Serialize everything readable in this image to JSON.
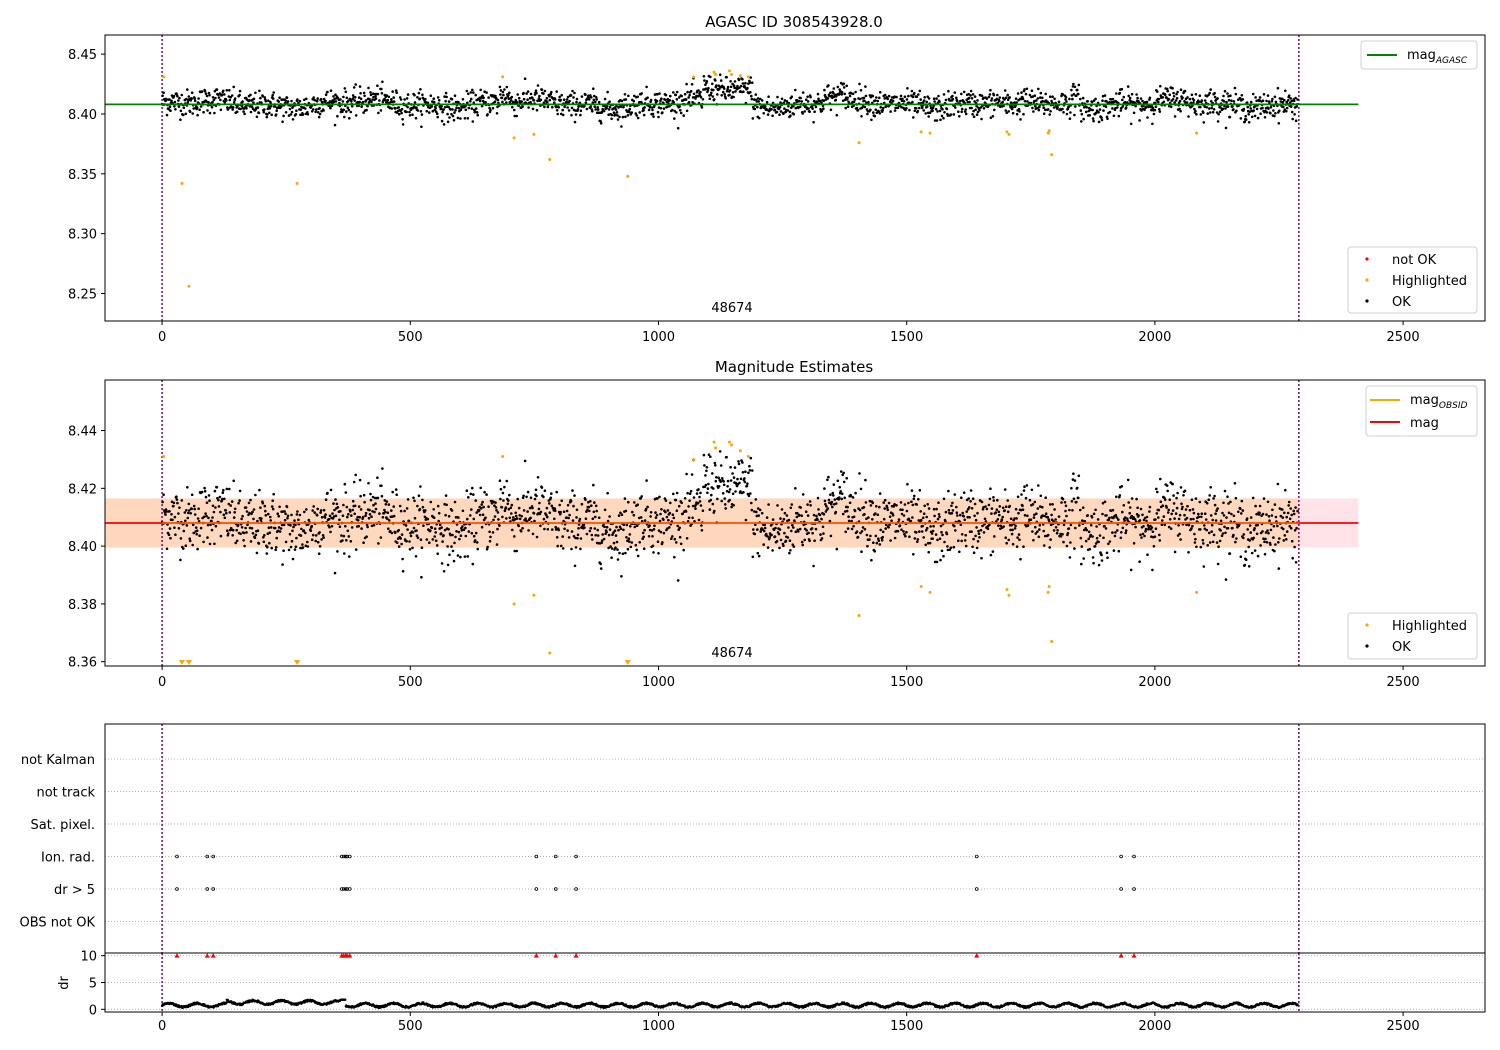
{
  "colors": {
    "ok": "#000000",
    "highlighted": "#ffa500",
    "not_ok": "#ff0000",
    "mag_agasc": "#008000",
    "mag_obsid": "#ffa500",
    "mag": "#ff0000",
    "band_fill": "#ffc0cb",
    "obs_boundary": "#800080",
    "grid": "#b0b0b0"
  },
  "chart_data": [
    {
      "type": "scatter",
      "title": "AGASC ID 308543928.0",
      "xlim": [
        -115,
        2665
      ],
      "ylim": [
        8.227,
        8.466
      ],
      "xticks": [
        0,
        500,
        1000,
        1500,
        2000,
        2500
      ],
      "yticks": [
        8.25,
        8.3,
        8.35,
        8.4,
        8.45
      ],
      "ytick_labels": [
        "8.25",
        "8.30",
        "8.35",
        "8.40",
        "8.45"
      ],
      "obs_boundaries": [
        0,
        2290
      ],
      "obsid_label": {
        "text": "48674",
        "x": 1145,
        "y": 8.231
      },
      "mag_agasc": 8.408,
      "mag_agasc_range": [
        -115,
        2410
      ],
      "series": [
        {
          "name": "not OK",
          "role": "not_ok",
          "points": []
        },
        {
          "name": "Highlighted",
          "role": "highlighted",
          "points": [
            [
              3,
              8.431
            ],
            [
              40,
              8.342
            ],
            [
              54,
              8.256
            ],
            [
              272,
              8.342
            ],
            [
              686,
              8.431
            ],
            [
              709,
              8.38
            ],
            [
              749,
              8.383
            ],
            [
              781,
              8.362
            ],
            [
              938,
              8.348
            ],
            [
              1071,
              8.431
            ],
            [
              1112,
              8.435
            ],
            [
              1115,
              8.433
            ],
            [
              1143,
              8.436
            ],
            [
              1147,
              8.433
            ],
            [
              1165,
              8.432
            ],
            [
              1181,
              8.431
            ],
            [
              1404,
              8.376
            ],
            [
              1529,
              8.385
            ],
            [
              1547,
              8.384
            ],
            [
              1702,
              8.385
            ],
            [
              1706,
              8.383
            ],
            [
              1785,
              8.384
            ],
            [
              1787,
              8.386
            ],
            [
              1792,
              8.366
            ],
            [
              2084,
              8.384
            ]
          ]
        },
        {
          "name": "OK",
          "role": "ok",
          "source": "light_curve_pattern"
        }
      ],
      "legend": {
        "mag_label": "mag",
        "mag_subscript": "AGASC",
        "not_ok_label": "not OK",
        "highlighted_label": "Highlighted",
        "ok_label": "OK"
      }
    },
    {
      "type": "scatter",
      "title": "Magnitude Estimates",
      "xlim": [
        -115,
        2665
      ],
      "ylim": [
        8.3585,
        8.4575
      ],
      "xticks": [
        0,
        500,
        1000,
        1500,
        2000,
        2500
      ],
      "yticks": [
        8.36,
        8.38,
        8.4,
        8.42,
        8.44
      ],
      "ytick_labels": [
        "8.36",
        "8.38",
        "8.40",
        "8.42",
        "8.44"
      ],
      "obs_boundaries": [
        0,
        2290
      ],
      "obsid_label": {
        "text": "48674",
        "x": 1145,
        "y": 8.3615
      },
      "mag": 8.408,
      "mag_band": [
        8.3995,
        8.4165
      ],
      "mag_obsid": 8.408,
      "band_range": [
        -115,
        2410
      ],
      "series": [
        {
          "name": "Highlighted",
          "role": "highlighted",
          "points": [
            [
              3,
              8.431
            ],
            [
              686,
              8.431
            ],
            [
              709,
              8.38
            ],
            [
              749,
              8.383
            ],
            [
              781,
              8.363
            ],
            [
              1071,
              8.43
            ],
            [
              1112,
              8.436
            ],
            [
              1115,
              8.434
            ],
            [
              1143,
              8.436
            ],
            [
              1147,
              8.435
            ],
            [
              1165,
              8.433
            ],
            [
              1181,
              8.431
            ],
            [
              1404,
              8.376
            ],
            [
              1529,
              8.386
            ],
            [
              1547,
              8.384
            ],
            [
              1702,
              8.385
            ],
            [
              1706,
              8.383
            ],
            [
              1785,
              8.384
            ],
            [
              1787,
              8.386
            ],
            [
              1792,
              8.367
            ],
            [
              2084,
              8.384
            ]
          ]
        },
        {
          "name": "Highlighted (below axis)",
          "role": "highlighted_clipped",
          "points": [
            [
              40,
              8.36
            ],
            [
              54,
              8.36
            ],
            [
              272,
              8.36
            ],
            [
              938,
              8.36
            ]
          ]
        },
        {
          "name": "OK",
          "role": "ok",
          "source": "light_curve_pattern"
        }
      ],
      "legend": {
        "obsid_label": "mag",
        "obsid_subscript": "OBSID",
        "mag_label": "mag",
        "highlighted_label": "Highlighted",
        "ok_label": "OK"
      }
    },
    {
      "type": "scatter",
      "title": "",
      "xlim": [
        -115,
        2665
      ],
      "xticks": [
        0,
        500,
        1000,
        1500,
        2000,
        2500
      ],
      "obs_boundaries": [
        0,
        2290
      ],
      "flag_rows": [
        "not Kalman",
        "not track",
        "Sat. pixel.",
        "Ion. rad.",
        "dr > 5",
        "OBS not OK"
      ],
      "flags": {
        "Ion. rad.": [
          30,
          91,
          103,
          362,
          366,
          370,
          373,
          378,
          754,
          793,
          834,
          1641,
          1932,
          1958
        ],
        "dr > 5": [
          30,
          91,
          103,
          362,
          366,
          370,
          373,
          378,
          754,
          793,
          834,
          1641,
          1932,
          1958
        ]
      },
      "dr": {
        "ylabel": "dr",
        "ylim": [
          -0.5,
          10.5
        ],
        "yticks": [
          0,
          5,
          10
        ],
        "ytick_labels": [
          "0",
          "5",
          "10"
        ],
        "high_dr_x": [
          30,
          91,
          103,
          362,
          366,
          370,
          373,
          378,
          754,
          793,
          834,
          1641,
          1932,
          1958
        ],
        "high_dr_value": 10,
        "typical_range": [
          0.1,
          1.8
        ]
      }
    }
  ]
}
